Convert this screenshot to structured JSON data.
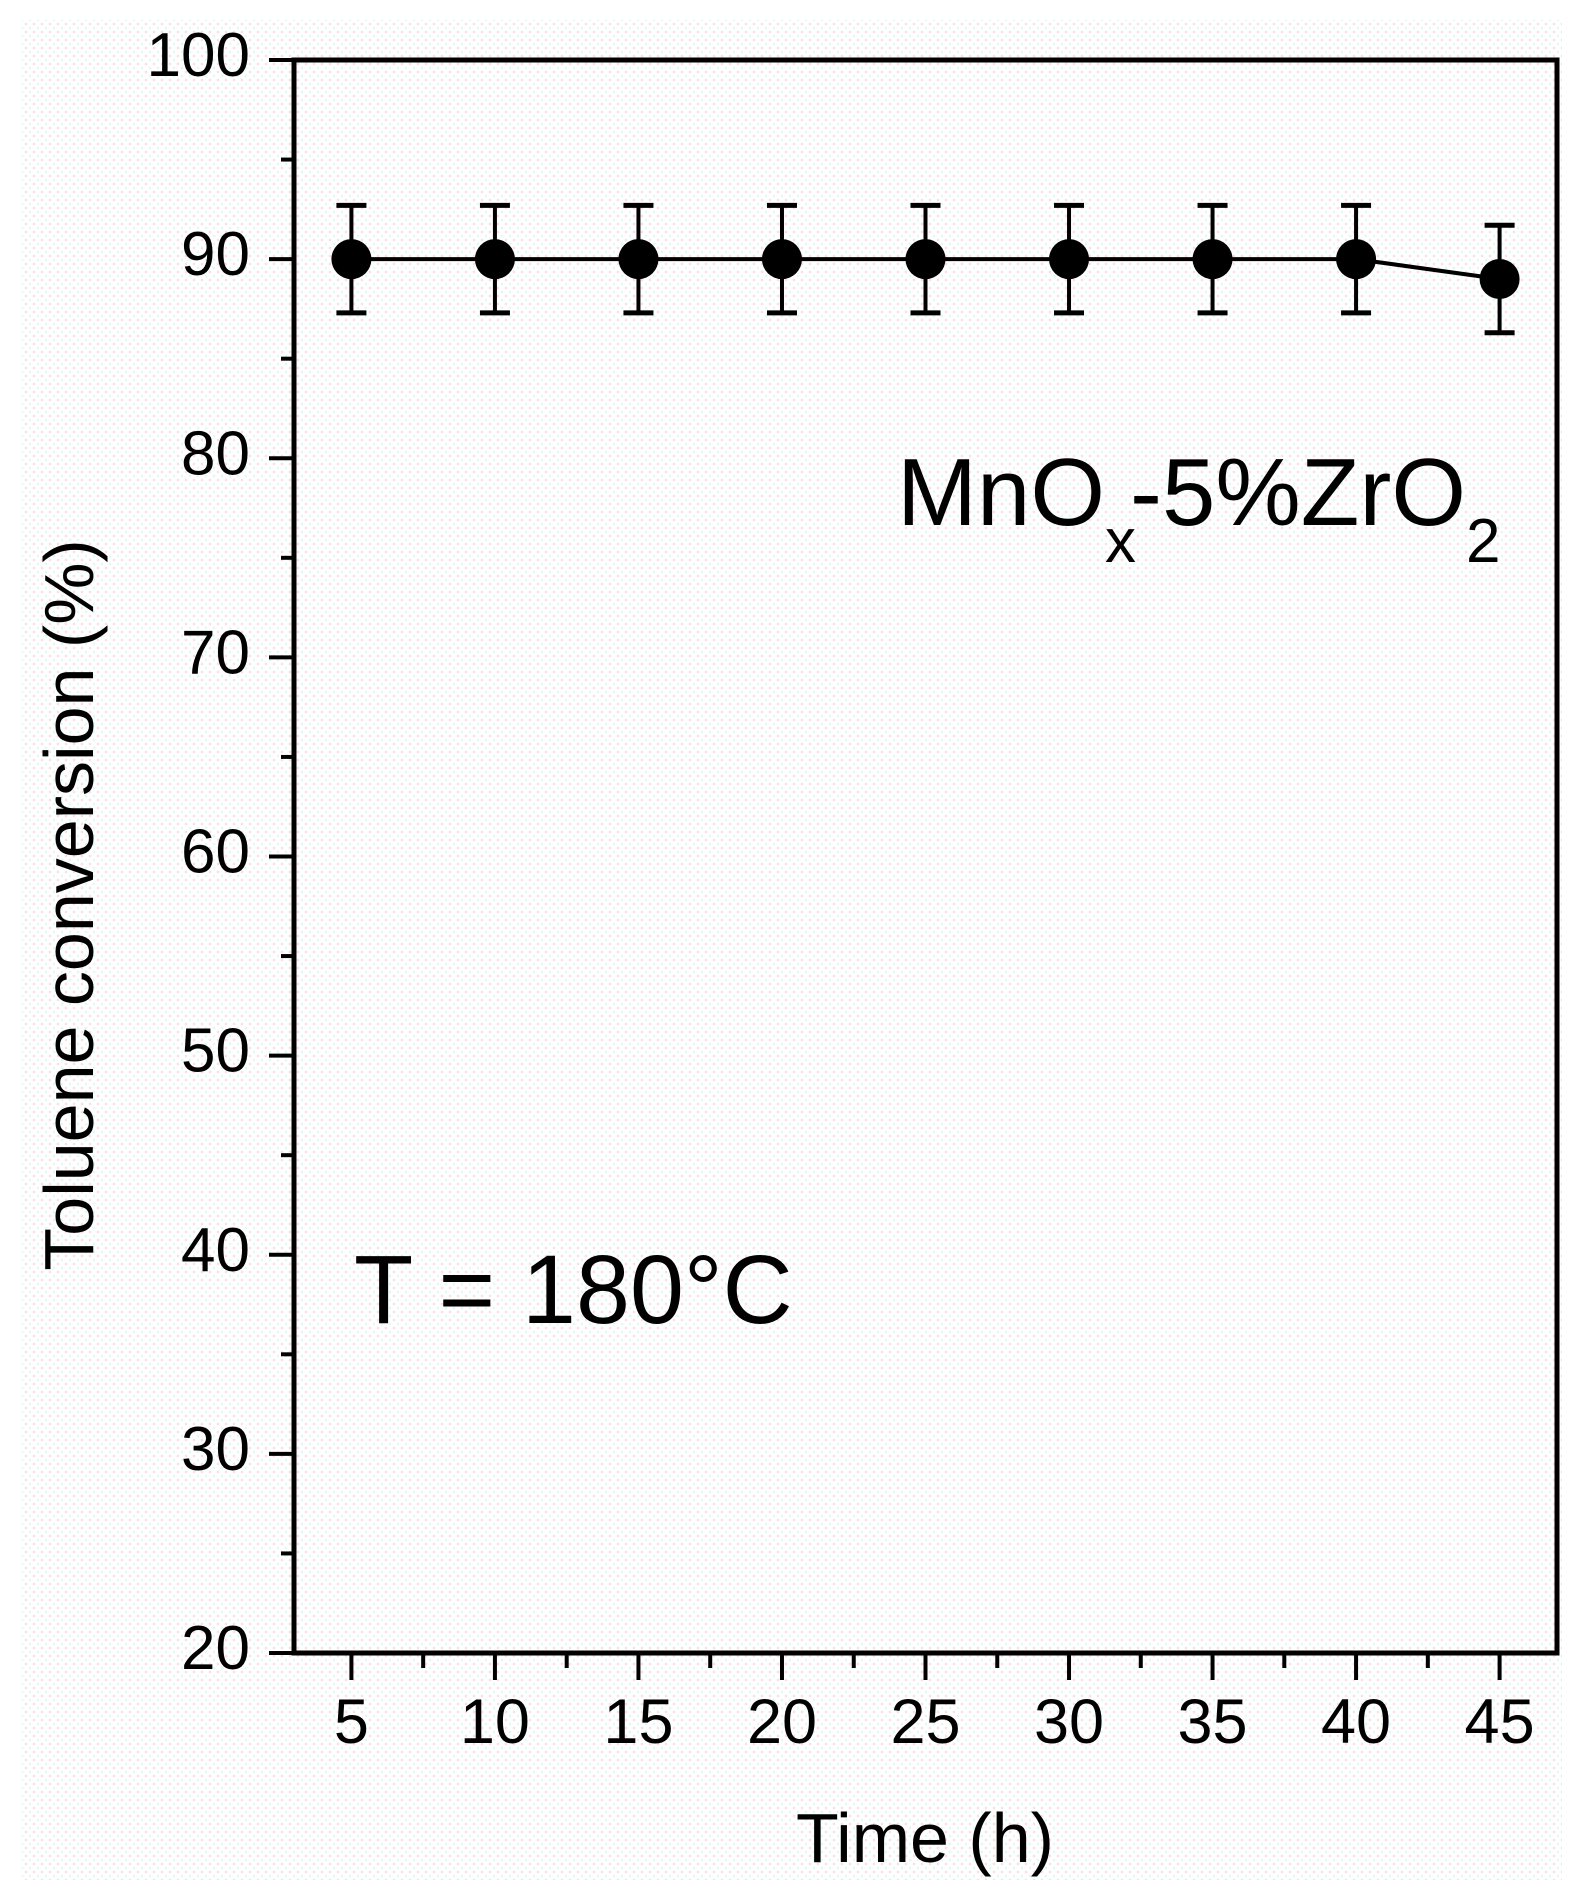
{
  "chart_data": {
    "type": "line",
    "title": "",
    "xlabel": "Time (h)",
    "ylabel": "Toluene conversion (%)",
    "xlim": [
      3,
      47
    ],
    "ylim": [
      20,
      100
    ],
    "x_ticks": [
      5,
      10,
      15,
      20,
      25,
      30,
      35,
      40,
      45
    ],
    "x_tick_labels": [
      "5",
      "10",
      "15",
      "20",
      "25",
      "30",
      "35",
      "40",
      "45"
    ],
    "x_minor_ticks": [
      7.5,
      12.5,
      17.5,
      22.5,
      27.5,
      32.5,
      37.5,
      42.5
    ],
    "y_ticks": [
      20,
      30,
      40,
      50,
      60,
      70,
      80,
      90,
      100
    ],
    "y_tick_labels": [
      "20",
      "30",
      "40",
      "50",
      "60",
      "70",
      "80",
      "90",
      "100"
    ],
    "y_minor_ticks": [
      25,
      35,
      45,
      55,
      65,
      75,
      85,
      95
    ],
    "grid": false,
    "legend": null,
    "series": [
      {
        "name": "MnOx-5%ZrO2",
        "marker": "filled-circle",
        "color": "#000000",
        "x": [
          5,
          10,
          15,
          20,
          25,
          30,
          35,
          40,
          45
        ],
        "values": [
          90.0,
          90.0,
          90.0,
          90.0,
          90.0,
          90.0,
          90.0,
          90.0,
          89.0
        ],
        "error": [
          2.7,
          2.7,
          2.7,
          2.7,
          2.7,
          2.7,
          2.7,
          2.7,
          2.7
        ]
      }
    ],
    "annotations": [
      {
        "id": "sample",
        "parts": [
          {
            "text": "MnO",
            "sub": false
          },
          {
            "text": "x",
            "sub": true
          },
          {
            "text": "-5%ZrO",
            "sub": false
          },
          {
            "text": "2",
            "sub": true
          }
        ],
        "plain": "MnOx-5%ZrO2"
      },
      {
        "id": "temperature",
        "text": "T = 180°C"
      }
    ]
  },
  "colors": {
    "axis": "#000000",
    "marker": "#000000",
    "line": "#000000"
  }
}
